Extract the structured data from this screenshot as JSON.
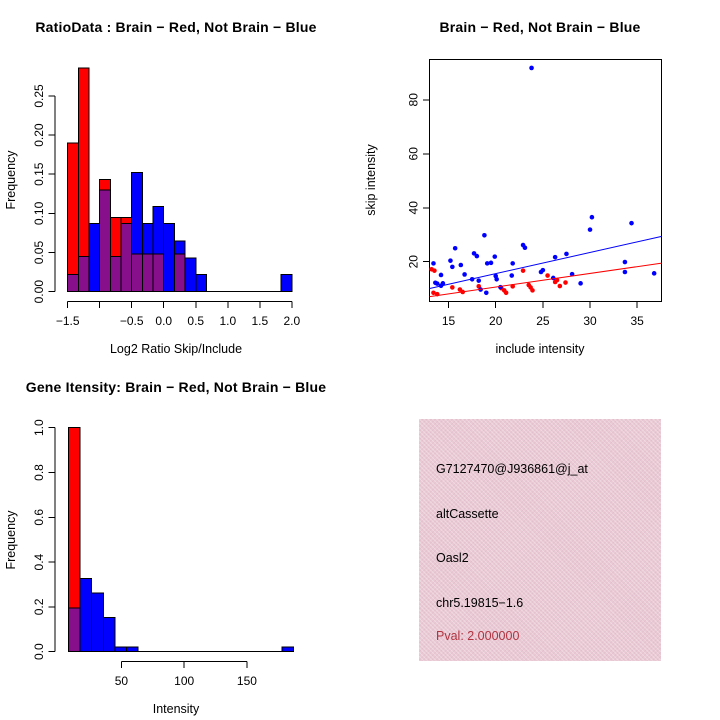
{
  "colors": {
    "red": "#ff0000",
    "blue": "#0000ff",
    "overlap_purple": "#870f8c",
    "axis_black": "#000000",
    "info_box_bg": "#e9cad4",
    "pval_text": "#b03340"
  },
  "panels": {
    "ratio_hist": {
      "title": "RatioData : Brain − Red, Not Brain − Blue",
      "xlabel": "Log2 Ratio Skip/Include",
      "ylabel": "Frequency"
    },
    "scatter": {
      "title": "Brain − Red, Not Brain − Blue",
      "xlabel": "include intensity",
      "ylabel": "skip intensity"
    },
    "gene_hist": {
      "title": "Gene Itensity: Brain − Red, Not Brain − Blue",
      "xlabel": "Intensity",
      "ylabel": "Frequency"
    },
    "info_box": {
      "probe_id": "G7127470@J936861@j_at",
      "event_type": "altCassette",
      "gene_name": "Oasl2",
      "locus": "chr5.19815−1.6",
      "pval": "Pval: 2.000000"
    }
  },
  "chart_data": [
    {
      "id": "ratio_hist",
      "type": "bar",
      "subtype": "overlaid-histograms",
      "title": "RatioData : Brain − Red, Not Brain − Blue",
      "xlabel": "Log2 Ratio Skip/Include",
      "ylabel": "Frequency",
      "grid": false,
      "xlim": [
        -1.698,
        2.087
      ],
      "ylim": [
        -0.0128,
        0.2968
      ],
      "xticks": [
        -1.5,
        -1.0,
        -0.5,
        0.0,
        0.5,
        1.0,
        1.5,
        2.0
      ],
      "xtick_labels": [
        "−1.5",
        "",
        "−0.5",
        "0.0",
        "0.5",
        "1.0",
        "1.5",
        "2.0"
      ],
      "yticks": [
        0.0,
        0.05,
        0.1,
        0.15,
        0.2,
        0.25
      ],
      "ytick_labels": [
        "0.00",
        "0.05",
        "0.10",
        "0.15",
        "0.20",
        "0.25"
      ],
      "baseline_span": [
        -1.5,
        2.0
      ],
      "series": [
        {
          "name": "Brain",
          "color_key": "red"
        },
        {
          "name": "Not Brain",
          "color_key": "blue"
        }
      ],
      "bins": [
        [
          -1.5,
          -1.3333,
          0.19,
          0.022
        ],
        [
          -1.3333,
          -1.1667,
          0.286,
          0.045
        ],
        [
          -1.1667,
          -1.0,
          0,
          0.087
        ],
        [
          -1.0,
          -0.8333,
          0.143,
          0.13
        ],
        [
          -0.8333,
          -0.6667,
          0.095,
          0.045
        ],
        [
          -0.6667,
          -0.5,
          0.095,
          0.087
        ],
        [
          -0.5,
          -0.3333,
          0.048,
          0.152
        ],
        [
          -0.3333,
          -0.1667,
          0.048,
          0.087
        ],
        [
          -0.1667,
          0.0,
          0.048,
          0.109
        ],
        [
          0.0,
          0.1667,
          0,
          0.087
        ],
        [
          0.1667,
          0.3333,
          0.048,
          0.065
        ],
        [
          0.3333,
          0.5,
          0,
          0.043
        ],
        [
          0.5,
          0.6667,
          0,
          0.022
        ],
        [
          1.8333,
          2.0,
          0,
          0.022
        ]
      ]
    },
    {
      "id": "scatter",
      "type": "scatter",
      "title": "Brain − Red, Not Brain − Blue",
      "xlabel": "include intensity",
      "ylabel": "skip intensity",
      "grid": false,
      "boxed": true,
      "xlim": [
        13.0,
        37.6
      ],
      "ylim": [
        5.2,
        95.0
      ],
      "xticks": [
        15,
        20,
        25,
        30,
        35
      ],
      "xtick_labels": [
        "15",
        "20",
        "25",
        "30",
        "35"
      ],
      "yticks": [
        20,
        40,
        60,
        80
      ],
      "ytick_labels": [
        "20",
        "40",
        "60",
        "80"
      ],
      "series": [
        {
          "name": "Brain",
          "color_key": "red",
          "points": [
            [
              13.2,
              17.2
            ],
            [
              13.5,
              16.7
            ],
            [
              13.4,
              8.5
            ],
            [
              13.8,
              8.0
            ],
            [
              15.4,
              10.5
            ],
            [
              16.2,
              9.7
            ],
            [
              16.5,
              8.8
            ],
            [
              18.2,
              10.9
            ],
            [
              20.6,
              10.2
            ],
            [
              20.9,
              9.4
            ],
            [
              21.1,
              8.5
            ],
            [
              21.8,
              10.9
            ],
            [
              22.9,
              16.7
            ],
            [
              23.5,
              11.4
            ],
            [
              23.7,
              10.5
            ],
            [
              23.9,
              9.4
            ],
            [
              25.5,
              14.9
            ],
            [
              26.3,
              12.5
            ],
            [
              26.5,
              13.2
            ],
            [
              26.8,
              11.0
            ],
            [
              27.4,
              12.3
            ]
          ],
          "fit_line": [
            [
              13.0,
              7.1
            ],
            [
              37.6,
              19.5
            ]
          ]
        },
        {
          "name": "Not Brain",
          "color_key": "blue",
          "points": [
            [
              13.4,
              19.4
            ],
            [
              13.8,
              11.9
            ],
            [
              13.6,
              12.2
            ],
            [
              14.2,
              15.1
            ],
            [
              14.2,
              11.1
            ],
            [
              14.4,
              12.0
            ],
            [
              15.2,
              20.4
            ],
            [
              15.4,
              18.1
            ],
            [
              15.7,
              25.0
            ],
            [
              16.3,
              18.8
            ],
            [
              16.7,
              15.3
            ],
            [
              17.5,
              13.5
            ],
            [
              17.7,
              23.1
            ],
            [
              18.0,
              22.1
            ],
            [
              18.2,
              13.0
            ],
            [
              18.4,
              9.7
            ],
            [
              18.8,
              29.8
            ],
            [
              19.0,
              8.5
            ],
            [
              19.1,
              19.4
            ],
            [
              19.5,
              19.6
            ],
            [
              19.9,
              21.9
            ],
            [
              20.0,
              14.7
            ],
            [
              20.1,
              13.5
            ],
            [
              20.5,
              10.6
            ],
            [
              21.7,
              14.9
            ],
            [
              21.8,
              19.4
            ],
            [
              22.9,
              26.2
            ],
            [
              23.1,
              25.2
            ],
            [
              23.8,
              91.8
            ],
            [
              24.8,
              16.2
            ],
            [
              25.0,
              16.9
            ],
            [
              26.1,
              14.0
            ],
            [
              26.3,
              21.7
            ],
            [
              27.5,
              22.9
            ],
            [
              28.1,
              15.4
            ],
            [
              29.0,
              12.0
            ],
            [
              30.0,
              31.9
            ],
            [
              30.2,
              36.5
            ],
            [
              33.7,
              19.9
            ],
            [
              33.7,
              16.2
            ],
            [
              34.4,
              34.3
            ],
            [
              36.8,
              15.7
            ]
          ],
          "fit_line": [
            [
              13.0,
              10.1
            ],
            [
              37.6,
              29.4
            ]
          ]
        }
      ]
    },
    {
      "id": "gene_hist",
      "type": "bar",
      "subtype": "overlaid-histograms",
      "title": "Gene Itensity: Brain − Red, Not Brain − Blue",
      "xlabel": "Intensity",
      "ylabel": "Frequency",
      "grid": false,
      "xlim": [
        -2.9,
        190.2
      ],
      "ylim": [
        -0.0446,
        1.0375
      ],
      "xticks": [
        50,
        100,
        150
      ],
      "xtick_labels": [
        "50",
        "100",
        "150"
      ],
      "yticks": [
        0.0,
        0.2,
        0.4,
        0.6,
        0.8,
        1.0
      ],
      "ytick_labels": [
        "0.0",
        "0.2",
        "0.4",
        "0.6",
        "0.8",
        "1.0"
      ],
      "baseline_span": [
        7.7,
        187.0
      ],
      "series": [
        {
          "name": "Brain",
          "color_key": "red"
        },
        {
          "name": "Not Brain",
          "color_key": "blue"
        }
      ],
      "bins": [
        [
          7.7,
          17.0,
          1.0,
          0.196
        ],
        [
          17.0,
          26.3,
          0,
          0.326
        ],
        [
          26.3,
          35.7,
          0,
          0.261
        ],
        [
          35.7,
          45.0,
          0,
          0.152
        ],
        [
          45.0,
          54.0,
          0,
          0.022
        ],
        [
          54.0,
          63.1,
          0,
          0.022
        ],
        [
          177.9,
          187.0,
          0,
          0.022
        ]
      ]
    }
  ]
}
